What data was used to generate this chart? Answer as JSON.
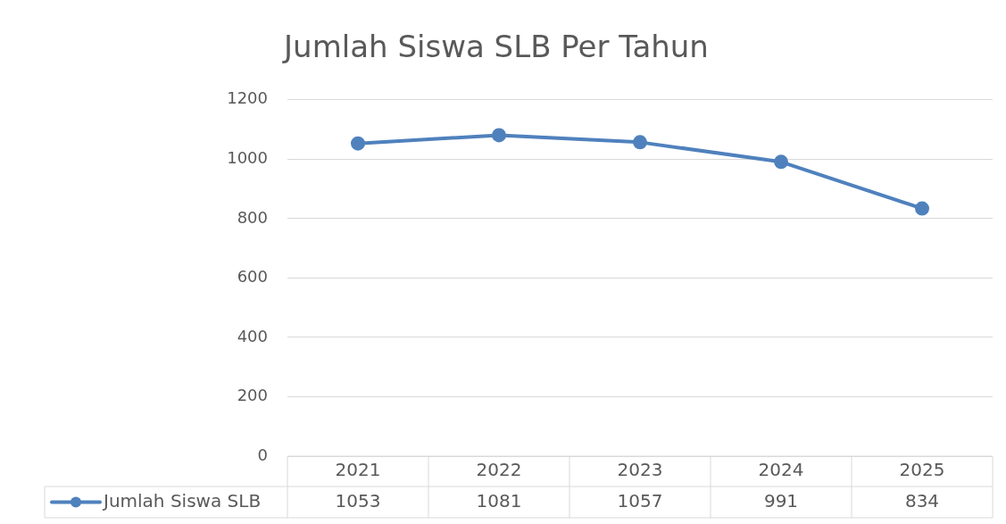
{
  "chart_data": {
    "type": "line",
    "title": "Jumlah Siswa SLB Per Tahun",
    "categories": [
      "2021",
      "2022",
      "2023",
      "2024",
      "2025"
    ],
    "series": [
      {
        "name": "Jumlah Siswa SLB",
        "color": "#4f81bd",
        "values": [
          1053,
          1081,
          1057,
          991,
          834
        ]
      }
    ],
    "ylim": [
      0,
      1200
    ],
    "yticks": [
      0,
      200,
      400,
      600,
      800,
      1000,
      1200
    ],
    "grid": "y",
    "legend": "bottom",
    "marker": "circle",
    "data_labels": true
  }
}
